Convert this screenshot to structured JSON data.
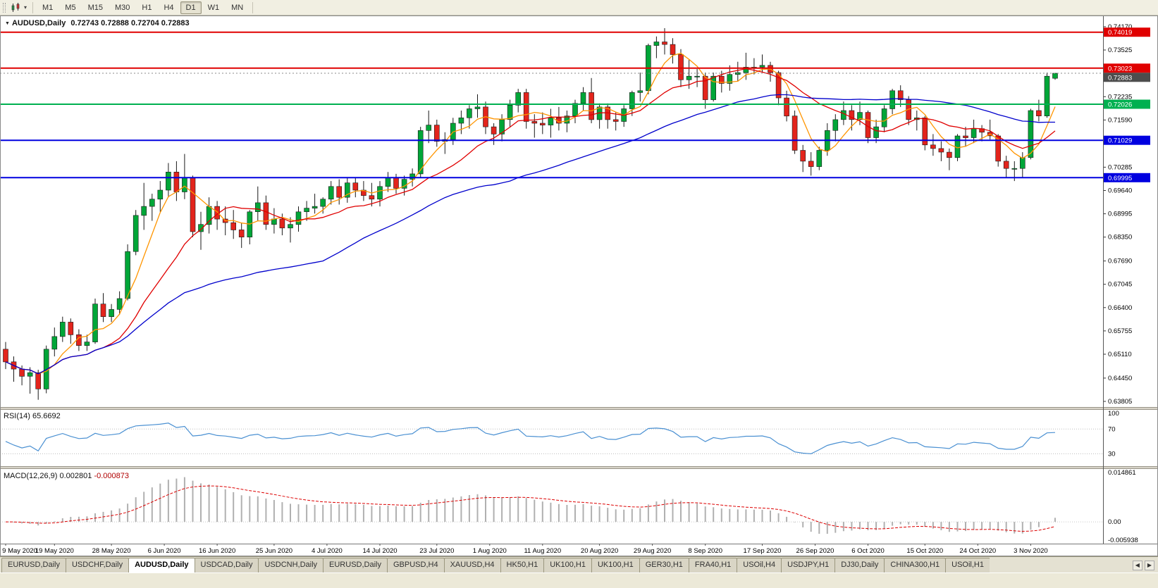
{
  "toolbar": {
    "timeframes": [
      "M1",
      "M5",
      "M15",
      "M30",
      "H1",
      "H4",
      "D1",
      "W1",
      "MN"
    ],
    "active_timeframe": "D1"
  },
  "icons": {
    "collapse_triangle": "▼",
    "dropdown_caret": "▾",
    "tab_scroll_left": "◀",
    "tab_scroll_right": "▶"
  },
  "chart": {
    "title": "AUDUSD,Daily",
    "ohlc": "0.72743 0.72888 0.72704 0.72883"
  },
  "indicators": {
    "rsi_name": "RSI(14)",
    "rsi_value": "65.6692",
    "macd_name": "MACD(12,26,9)",
    "macd_main_value": "0.002801",
    "macd_signal_value": "-0.000873"
  },
  "tabbar": {
    "active_index": 2,
    "tabs": [
      "EURUSD,Daily",
      "USDCHF,Daily",
      "AUDUSD,Daily",
      "USDCAD,Daily",
      "USDCNH,Daily",
      "EURUSD,Daily",
      "GBPUSD,H4",
      "XAUUSD,H4",
      "HK50,H1",
      "UK100,H1",
      "UK100,H1",
      "GER30,H1",
      "FRA40,H1",
      "USOil,H4",
      "USDJPY,H1",
      "DJ30,Daily",
      "CHINA300,H1",
      "USOil,H1"
    ]
  },
  "chart_data": {
    "type": "candlestick",
    "symbol": "AUDUSD",
    "timeframe": "Daily",
    "price_range": [
      0.6365,
      0.7448
    ],
    "price_ticks": [
      0.7417,
      0.73525,
      0.72235,
      0.7159,
      0.70285,
      0.6964,
      0.68995,
      0.6835,
      0.6769,
      0.67045,
      0.664,
      0.65755,
      0.6511,
      0.6445,
      0.63805
    ],
    "date_ticks": [
      {
        "label": "9 May 2020",
        "i": 0
      },
      {
        "label": "19 May 2020",
        "i": 6
      },
      {
        "label": "28 May 2020",
        "i": 13
      },
      {
        "label": "6 Jun 2020",
        "i": 19.5
      },
      {
        "label": "16 Jun 2020",
        "i": 26
      },
      {
        "label": "25 Jun 2020",
        "i": 33
      },
      {
        "label": "4 Jul 2020",
        "i": 39.5
      },
      {
        "label": "14 Jul 2020",
        "i": 46
      },
      {
        "label": "23 Jul 2020",
        "i": 53
      },
      {
        "label": "1 Aug 2020",
        "i": 59.5
      },
      {
        "label": "11 Aug 2020",
        "i": 66
      },
      {
        "label": "20 Aug 2020",
        "i": 73
      },
      {
        "label": "29 Aug 2020",
        "i": 79.5
      },
      {
        "label": "8 Sep 2020",
        "i": 86
      },
      {
        "label": "17 Sep 2020",
        "i": 93
      },
      {
        "label": "26 Sep 2020",
        "i": 99.5
      },
      {
        "label": "6 Oct 2020",
        "i": 106
      },
      {
        "label": "15 Oct 2020",
        "i": 113
      },
      {
        "label": "24 Oct 2020",
        "i": 119.5
      },
      {
        "label": "3 Nov 2020",
        "i": 126
      }
    ],
    "candles": [
      [
        0.6525,
        0.6545,
        0.647,
        0.649
      ],
      [
        0.649,
        0.6505,
        0.6435,
        0.647
      ],
      [
        0.647,
        0.648,
        0.6425,
        0.645
      ],
      [
        0.645,
        0.6475,
        0.6402,
        0.646
      ],
      [
        0.646,
        0.6468,
        0.6385,
        0.6415
      ],
      [
        0.6415,
        0.6535,
        0.6403,
        0.6525
      ],
      [
        0.6525,
        0.6585,
        0.6505,
        0.656
      ],
      [
        0.656,
        0.6615,
        0.6545,
        0.66
      ],
      [
        0.66,
        0.661,
        0.654,
        0.6565
      ],
      [
        0.6565,
        0.658,
        0.652,
        0.6535
      ],
      [
        0.6535,
        0.6565,
        0.652,
        0.6545
      ],
      [
        0.6545,
        0.6665,
        0.654,
        0.665
      ],
      [
        0.665,
        0.668,
        0.66,
        0.6615
      ],
      [
        0.6615,
        0.665,
        0.66,
        0.6635
      ],
      [
        0.6635,
        0.6685,
        0.662,
        0.6665
      ],
      [
        0.6665,
        0.6815,
        0.666,
        0.6795
      ],
      [
        0.6795,
        0.691,
        0.6785,
        0.6895
      ],
      [
        0.6895,
        0.6985,
        0.6855,
        0.692
      ],
      [
        0.692,
        0.6955,
        0.688,
        0.694
      ],
      [
        0.694,
        0.699,
        0.6905,
        0.6965
      ],
      [
        0.6965,
        0.704,
        0.6945,
        0.7015
      ],
      [
        0.7015,
        0.7045,
        0.6935,
        0.696
      ],
      [
        0.696,
        0.7065,
        0.694,
        0.7
      ],
      [
        0.7,
        0.7005,
        0.6835,
        0.685
      ],
      [
        0.685,
        0.6905,
        0.68,
        0.687
      ],
      [
        0.687,
        0.6945,
        0.6845,
        0.692
      ],
      [
        0.692,
        0.6935,
        0.6855,
        0.6885
      ],
      [
        0.6885,
        0.692,
        0.684,
        0.6875
      ],
      [
        0.6875,
        0.691,
        0.683,
        0.6855
      ],
      [
        0.6855,
        0.6875,
        0.6805,
        0.6835
      ],
      [
        0.6835,
        0.691,
        0.6815,
        0.6905
      ],
      [
        0.6905,
        0.6975,
        0.688,
        0.693
      ],
      [
        0.693,
        0.695,
        0.6855,
        0.687
      ],
      [
        0.687,
        0.6915,
        0.6845,
        0.6885
      ],
      [
        0.6885,
        0.69,
        0.684,
        0.686
      ],
      [
        0.686,
        0.689,
        0.682,
        0.687
      ],
      [
        0.687,
        0.692,
        0.685,
        0.6905
      ],
      [
        0.6905,
        0.6935,
        0.688,
        0.6915
      ],
      [
        0.6915,
        0.6955,
        0.69,
        0.692
      ],
      [
        0.692,
        0.6945,
        0.69,
        0.694
      ],
      [
        0.694,
        0.699,
        0.6925,
        0.6975
      ],
      [
        0.6975,
        0.6995,
        0.6925,
        0.6945
      ],
      [
        0.6945,
        0.7,
        0.693,
        0.6985
      ],
      [
        0.6985,
        0.7,
        0.6945,
        0.6965
      ],
      [
        0.6965,
        0.699,
        0.6935,
        0.695
      ],
      [
        0.695,
        0.6985,
        0.692,
        0.694
      ],
      [
        0.694,
        0.699,
        0.692,
        0.6975
      ],
      [
        0.6975,
        0.7015,
        0.696,
        0.7
      ],
      [
        0.7,
        0.701,
        0.6955,
        0.697
      ],
      [
        0.697,
        0.7005,
        0.695,
        0.6995
      ],
      [
        0.6995,
        0.7025,
        0.6975,
        0.701
      ],
      [
        0.701,
        0.714,
        0.7,
        0.713
      ],
      [
        0.713,
        0.7185,
        0.7095,
        0.7145
      ],
      [
        0.7145,
        0.716,
        0.7085,
        0.71
      ],
      [
        0.71,
        0.7125,
        0.7065,
        0.7105
      ],
      [
        0.7105,
        0.7165,
        0.709,
        0.715
      ],
      [
        0.715,
        0.7185,
        0.712,
        0.7165
      ],
      [
        0.7165,
        0.72,
        0.7135,
        0.719
      ],
      [
        0.719,
        0.723,
        0.7165,
        0.7195
      ],
      [
        0.7195,
        0.721,
        0.712,
        0.714
      ],
      [
        0.714,
        0.715,
        0.709,
        0.712
      ],
      [
        0.712,
        0.7175,
        0.71,
        0.716
      ],
      [
        0.716,
        0.7215,
        0.714,
        0.72
      ],
      [
        0.72,
        0.7245,
        0.718,
        0.7235
      ],
      [
        0.7235,
        0.7245,
        0.7135,
        0.7155
      ],
      [
        0.7155,
        0.7175,
        0.711,
        0.715
      ],
      [
        0.715,
        0.718,
        0.712,
        0.7145
      ],
      [
        0.7145,
        0.719,
        0.711,
        0.7165
      ],
      [
        0.7165,
        0.7195,
        0.713,
        0.715
      ],
      [
        0.715,
        0.7185,
        0.7125,
        0.717
      ],
      [
        0.717,
        0.7215,
        0.715,
        0.7205
      ],
      [
        0.7205,
        0.725,
        0.7185,
        0.7235
      ],
      [
        0.7235,
        0.7275,
        0.715,
        0.716
      ],
      [
        0.716,
        0.7205,
        0.7135,
        0.7195
      ],
      [
        0.7195,
        0.7205,
        0.7135,
        0.716
      ],
      [
        0.716,
        0.718,
        0.713,
        0.7155
      ],
      [
        0.7155,
        0.72,
        0.714,
        0.719
      ],
      [
        0.719,
        0.724,
        0.717,
        0.7235
      ],
      [
        0.7235,
        0.729,
        0.721,
        0.724
      ],
      [
        0.724,
        0.737,
        0.723,
        0.7365
      ],
      [
        0.7365,
        0.739,
        0.733,
        0.7375
      ],
      [
        0.7375,
        0.7413,
        0.734,
        0.7368
      ],
      [
        0.7368,
        0.7385,
        0.7315,
        0.734
      ],
      [
        0.734,
        0.7355,
        0.725,
        0.727
      ],
      [
        0.727,
        0.7325,
        0.7245,
        0.728
      ],
      [
        0.728,
        0.73,
        0.725,
        0.728
      ],
      [
        0.728,
        0.729,
        0.719,
        0.7215
      ],
      [
        0.7215,
        0.729,
        0.721,
        0.728
      ],
      [
        0.728,
        0.7295,
        0.7235,
        0.726
      ],
      [
        0.726,
        0.731,
        0.724,
        0.7285
      ],
      [
        0.7285,
        0.732,
        0.7265,
        0.729
      ],
      [
        0.729,
        0.7345,
        0.727,
        0.7305
      ],
      [
        0.7305,
        0.733,
        0.7285,
        0.7305
      ],
      [
        0.7305,
        0.734,
        0.729,
        0.731
      ],
      [
        0.731,
        0.732,
        0.7265,
        0.729
      ],
      [
        0.729,
        0.7295,
        0.72,
        0.722
      ],
      [
        0.722,
        0.724,
        0.7155,
        0.717
      ],
      [
        0.717,
        0.7185,
        0.7065,
        0.7075
      ],
      [
        0.7075,
        0.709,
        0.7015,
        0.7045
      ],
      [
        0.7045,
        0.707,
        0.7005,
        0.703
      ],
      [
        0.703,
        0.7085,
        0.702,
        0.7075
      ],
      [
        0.7075,
        0.715,
        0.706,
        0.713
      ],
      [
        0.713,
        0.7175,
        0.71,
        0.716
      ],
      [
        0.716,
        0.721,
        0.7145,
        0.7185
      ],
      [
        0.7185,
        0.72,
        0.713,
        0.716
      ],
      [
        0.716,
        0.721,
        0.7145,
        0.718
      ],
      [
        0.718,
        0.7185,
        0.7095,
        0.711
      ],
      [
        0.711,
        0.716,
        0.7095,
        0.714
      ],
      [
        0.714,
        0.72,
        0.7125,
        0.719
      ],
      [
        0.719,
        0.7245,
        0.7175,
        0.724
      ],
      [
        0.724,
        0.7255,
        0.7195,
        0.7215
      ],
      [
        0.7215,
        0.7225,
        0.7145,
        0.716
      ],
      [
        0.716,
        0.7185,
        0.713,
        0.7165
      ],
      [
        0.7165,
        0.717,
        0.7075,
        0.709
      ],
      [
        0.709,
        0.712,
        0.706,
        0.708
      ],
      [
        0.708,
        0.71,
        0.7045,
        0.707
      ],
      [
        0.707,
        0.708,
        0.702,
        0.7055
      ],
      [
        0.7055,
        0.712,
        0.7045,
        0.7115
      ],
      [
        0.7115,
        0.714,
        0.7085,
        0.711
      ],
      [
        0.711,
        0.716,
        0.7095,
        0.7135
      ],
      [
        0.7135,
        0.7145,
        0.71,
        0.7125
      ],
      [
        0.7125,
        0.716,
        0.7105,
        0.7115
      ],
      [
        0.7115,
        0.712,
        0.703,
        0.7045
      ],
      [
        0.7045,
        0.706,
        0.7,
        0.7025
      ],
      [
        0.7025,
        0.7045,
        0.699,
        0.7025
      ],
      [
        0.7025,
        0.707,
        0.7,
        0.7055
      ],
      [
        0.7055,
        0.719,
        0.705,
        0.7185
      ],
      [
        0.7185,
        0.7215,
        0.7155,
        0.717
      ],
      [
        0.717,
        0.729,
        0.7165,
        0.728
      ],
      [
        0.72743,
        0.72888,
        0.72704,
        0.72883
      ]
    ],
    "colors": {
      "bull": "#00a638",
      "bear": "#e3241c",
      "wick": "#1a1a1a"
    },
    "moving_averages": [
      {
        "period": 5,
        "color": "#ff9500"
      },
      {
        "period": 13,
        "color": "#e00000"
      },
      {
        "period": 40,
        "color": "#0000cc"
      }
    ],
    "hlines": [
      {
        "price": 0.74019,
        "color": "#e00000"
      },
      {
        "price": 0.73023,
        "color": "#e00000"
      },
      {
        "price": 0.72026,
        "color": "#00b050"
      },
      {
        "price": 0.71029,
        "color": "#0000e0"
      },
      {
        "price": 0.69995,
        "color": "#0000e0"
      }
    ],
    "current_price": {
      "price": 0.72883,
      "badge_color": "#4d4d4d"
    },
    "rsi": {
      "period": 14,
      "value": 65.6692,
      "levels": [
        70,
        30
      ],
      "scale_labels": [
        100,
        70,
        30
      ],
      "range": [
        10,
        101
      ],
      "color": "#4a90d2"
    },
    "macd": {
      "fast": 12,
      "slow": 26,
      "signal": 9,
      "main_value": 0.002801,
      "signal_value": -0.000873,
      "range": [
        -0.0063,
        0.0153
      ],
      "scale_ticks": [
        {
          "v": 0.014861,
          "label": "0.014861"
        },
        {
          "v": 0,
          "label": "0.00"
        },
        {
          "v": -0.005938,
          "label": "-0.005938"
        }
      ],
      "hist_color": "#b0b0b0",
      "signal_color": "#dd0000"
    }
  }
}
